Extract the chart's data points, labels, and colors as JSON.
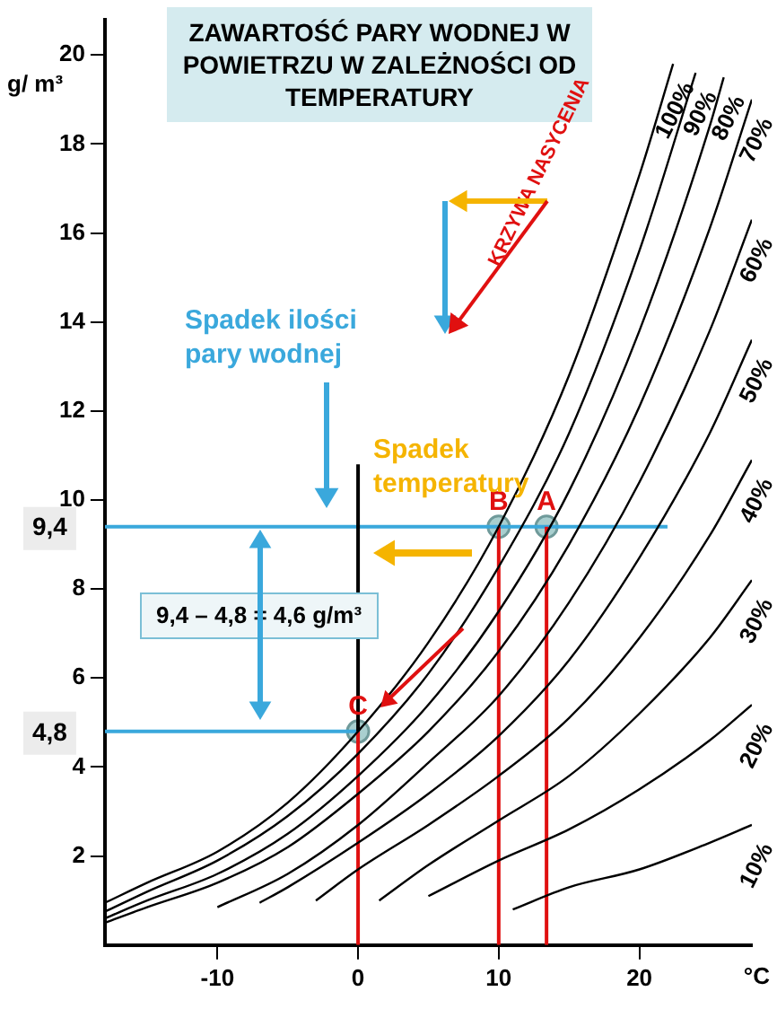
{
  "chart_data": {
    "type": "line",
    "title": "ZAWARTOŚĆ PARY WODNEJ W POWIETRZU W ZALEŻNOŚCI OD TEMPERATURY",
    "ylabel": "g/ m³",
    "xlabel": "°C",
    "xlim": [
      -18,
      28
    ],
    "ylim": [
      0,
      20.8
    ],
    "xticks": [
      -10,
      0,
      10,
      20
    ],
    "yticks": [
      2,
      4,
      6,
      8,
      10,
      12,
      14,
      16,
      18,
      20
    ],
    "grid": false,
    "marker": "none",
    "series": [
      {
        "name": "100%",
        "color": "#000000",
        "x": [
          -18,
          -15,
          -10,
          -5,
          0,
          5,
          10,
          15,
          20,
          22.4
        ],
        "values": [
          0.95,
          1.4,
          2.1,
          3.2,
          4.8,
          6.8,
          9.4,
          12.8,
          17.3,
          19.8
        ]
      },
      {
        "name": "90%",
        "color": "#000000",
        "x": [
          -18,
          -15,
          -10,
          -5,
          0,
          5,
          10,
          15,
          20,
          24
        ],
        "values": [
          0.75,
          1.2,
          1.9,
          2.9,
          4.3,
          6.1,
          8.5,
          11.5,
          15.6,
          19.6
        ]
      },
      {
        "name": "80%",
        "color": "#000000",
        "x": [
          -18,
          -15,
          -10,
          -5,
          0,
          5,
          10,
          15,
          20,
          25,
          26
        ],
        "values": [
          0.6,
          1.0,
          1.6,
          2.5,
          3.8,
          5.4,
          7.5,
          10.2,
          13.8,
          18.4,
          19.5
        ]
      },
      {
        "name": "70%",
        "color": "#000000",
        "x": [
          -18,
          -15,
          -10,
          -5,
          0,
          5,
          10,
          15,
          20,
          25,
          28
        ],
        "values": [
          0.5,
          0.85,
          1.4,
          2.2,
          3.4,
          4.8,
          6.6,
          9.0,
          12.1,
          16.1,
          19.0
        ]
      },
      {
        "name": "60%",
        "color": "#000000",
        "x": [
          -10,
          -5,
          0,
          5,
          10,
          15,
          20,
          25,
          28
        ],
        "values": [
          0.85,
          1.6,
          2.7,
          4.1,
          5.6,
          7.7,
          10.4,
          13.8,
          16.3
        ]
      },
      {
        "name": "50%",
        "color": "#000000",
        "x": [
          -7,
          -5,
          0,
          5,
          10,
          15,
          20,
          25,
          28
        ],
        "values": [
          0.95,
          1.3,
          2.3,
          3.4,
          4.7,
          6.4,
          8.7,
          11.5,
          13.6
        ]
      },
      {
        "name": "40%",
        "color": "#000000",
        "x": [
          -3,
          0,
          5,
          10,
          15,
          20,
          25,
          28
        ],
        "values": [
          1.0,
          1.7,
          2.7,
          3.8,
          5.1,
          6.9,
          9.2,
          10.9
        ]
      },
      {
        "name": "30%",
        "color": "#000000",
        "x": [
          1.5,
          5,
          10,
          15,
          20,
          25,
          28
        ],
        "values": [
          1.0,
          1.8,
          2.8,
          3.8,
          5.2,
          6.9,
          8.2
        ]
      },
      {
        "name": "20%",
        "color": "#000000",
        "x": [
          5,
          10,
          15,
          20,
          25,
          28
        ],
        "values": [
          1.1,
          1.9,
          2.6,
          3.5,
          4.6,
          5.4
        ]
      },
      {
        "name": "10%",
        "color": "#000000",
        "x": [
          11,
          15,
          20,
          25,
          28
        ],
        "values": [
          0.8,
          1.3,
          1.7,
          2.3,
          2.7
        ]
      },
      {
        "type": "line",
        "color": "#e01010",
        "x": [
          0,
          0
        ],
        "values": [
          0,
          4.8
        ]
      },
      {
        "type": "line",
        "color": "#e01010",
        "x": [
          10,
          10
        ],
        "values": [
          0,
          9.4
        ]
      },
      {
        "type": "line",
        "color": "#e01010",
        "x": [
          13.4,
          13.4
        ],
        "values": [
          0,
          9.4
        ]
      },
      {
        "type": "line",
        "color": "#000000",
        "x": [
          0,
          0
        ],
        "values": [
          4.8,
          10.8
        ]
      },
      {
        "type": "line",
        "color": "#3aa8dc",
        "x": [
          -18,
          22
        ],
        "values": [
          9.4,
          9.4
        ]
      },
      {
        "type": "line",
        "color": "#3aa8dc",
        "x": [
          -18,
          0
        ],
        "values": [
          4.8,
          4.8
        ]
      },
      {
        "type": "scatter",
        "marker": "circle",
        "color": "#a9cfcf",
        "x": [
          13.4,
          10,
          0
        ],
        "values": [
          9.4,
          9.4,
          4.8
        ]
      }
    ],
    "annotations": [
      "Spadek ilości pary wodnej",
      "Spadek temperatury",
      "9,4 – 4,8 =  4,6 g/m³",
      "KRZYWA NASYCENIA",
      {
        "text": "A",
        "x": 13.4,
        "y": 9.4
      },
      {
        "text": "B",
        "x": 10,
        "y": 9.4
      },
      {
        "text": "C",
        "x": 0,
        "y": 4.8
      },
      {
        "text": "9,4",
        "x": -18,
        "y": 9.4
      },
      {
        "text": "4,8",
        "x": -18,
        "y": 4.8
      }
    ]
  }
}
